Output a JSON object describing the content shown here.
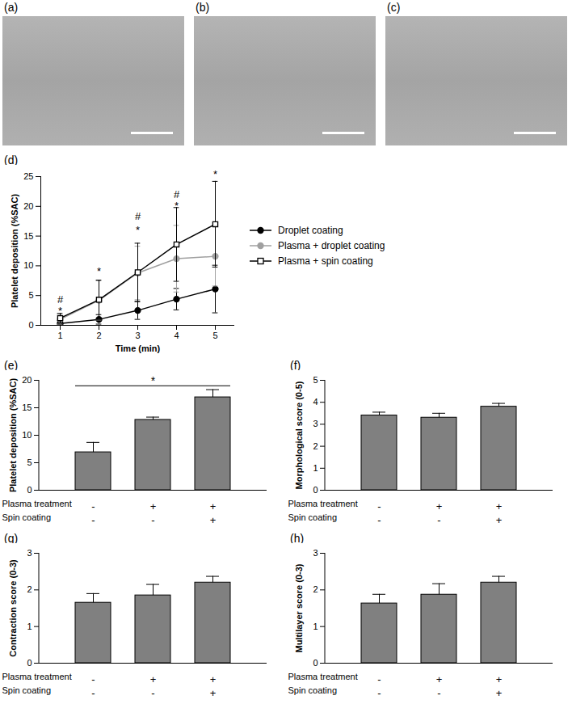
{
  "images": [
    {
      "label": "(a)"
    },
    {
      "label": "(b)"
    },
    {
      "label": "(c)"
    }
  ],
  "chart_data": [
    {
      "type": "line",
      "title": "(d)",
      "x": [
        1,
        2,
        3,
        4,
        5
      ],
      "xlim": [
        0.5,
        5.5
      ],
      "xticks": [
        1,
        2,
        3,
        4,
        5
      ],
      "ylim": [
        0,
        25
      ],
      "yticks": [
        0,
        5,
        10,
        15,
        20,
        25
      ],
      "xlabel": "Time (min)",
      "ylabel": "Platelet deposition (%SAC)",
      "legend": "right",
      "series": [
        {
          "name": "Droplet coating",
          "color": "#000000",
          "marker": "circle",
          "values": [
            0.3,
            1.0,
            2.5,
            4.4,
            6.1
          ],
          "errors": [
            0.5,
            0.8,
            1.5,
            1.8,
            4.0
          ]
        },
        {
          "name": "Plasma + droplet coating",
          "color": "#a0a0a0",
          "marker": "circle",
          "values": [
            1.0,
            4.2,
            8.8,
            11.2,
            11.6
          ],
          "errors": [
            0.8,
            3.3,
            4.5,
            5.6,
            5.0
          ]
        },
        {
          "name": "Plasma + spin coating",
          "color": "#000000",
          "marker": "square-open",
          "values": [
            1.2,
            4.3,
            8.9,
            13.6,
            17.0
          ],
          "errors": [
            0.8,
            3.3,
            4.9,
            6.2,
            7.2
          ]
        }
      ],
      "annotations": [
        {
          "x": 1,
          "y": 2.4,
          "text": "*"
        },
        {
          "x": 1,
          "y": 4.3,
          "text": "#"
        },
        {
          "x": 2,
          "y": 9.0,
          "text": "*"
        },
        {
          "x": 3,
          "y": 16.0,
          "text": "*"
        },
        {
          "x": 3,
          "y": 18.3,
          "text": "#"
        },
        {
          "x": 4,
          "y": 20.0,
          "text": "*"
        },
        {
          "x": 4,
          "y": 22.0,
          "text": "#"
        },
        {
          "x": 5,
          "y": 25.3,
          "text": "*"
        }
      ]
    },
    {
      "type": "bar",
      "title": "(e)",
      "categories": [
        null,
        null,
        null
      ],
      "factors": [
        {
          "name": "Plasma treatment",
          "levels": [
            "-",
            "+",
            "+"
          ]
        },
        {
          "name": "Spin coating",
          "levels": [
            "-",
            "-",
            "+"
          ]
        }
      ],
      "values": [
        6.9,
        12.8,
        16.9
      ],
      "errors": [
        1.8,
        0.5,
        1.4
      ],
      "color": "#808080",
      "ylim": [
        0,
        20
      ],
      "yticks": [
        0,
        5,
        10,
        15,
        20
      ],
      "ylabel": "Platelet deposition (%SAC)",
      "annotations": [
        {
          "from": 0,
          "to": 2,
          "y": 19.0,
          "text": "*"
        }
      ]
    },
    {
      "type": "bar",
      "title": "(f)",
      "categories": [
        null,
        null,
        null
      ],
      "factors": [
        {
          "name": "Plasma treatment",
          "levels": [
            "-",
            "+",
            "+"
          ]
        },
        {
          "name": "Spin coating",
          "levels": [
            "-",
            "-",
            "+"
          ]
        }
      ],
      "values": [
        3.4,
        3.3,
        3.8
      ],
      "errors": [
        0.15,
        0.2,
        0.15
      ],
      "color": "#808080",
      "ylim": [
        0,
        5
      ],
      "yticks": [
        0,
        1,
        2,
        3,
        4,
        5
      ],
      "ylabel": "Morphological score (0-5)"
    },
    {
      "type": "bar",
      "title": "(g)",
      "categories": [
        null,
        null,
        null
      ],
      "factors": [
        {
          "name": "Plasma treatment",
          "levels": [
            "-",
            "+",
            "+"
          ]
        },
        {
          "name": "Spin coating",
          "levels": [
            "-",
            "-",
            "+"
          ]
        }
      ],
      "values": [
        1.65,
        1.85,
        2.2
      ],
      "errors": [
        0.25,
        0.3,
        0.17
      ],
      "color": "#808080",
      "ylim": [
        0,
        3
      ],
      "yticks": [
        0,
        1,
        2,
        3
      ],
      "ylabel": "Contraction score (0-3)"
    },
    {
      "type": "bar",
      "title": "(h)",
      "categories": [
        null,
        null,
        null
      ],
      "factors": [
        {
          "name": "Plasma treatment",
          "levels": [
            "-",
            "+",
            "+"
          ]
        },
        {
          "name": "Spin coating",
          "levels": [
            "-",
            "-",
            "+"
          ]
        }
      ],
      "values": [
        1.63,
        1.87,
        2.2
      ],
      "errors": [
        0.25,
        0.3,
        0.17
      ],
      "color": "#808080",
      "ylim": [
        0,
        3
      ],
      "yticks": [
        0,
        1,
        2,
        3
      ],
      "ylabel": "Multilayer score (0-3)"
    }
  ]
}
